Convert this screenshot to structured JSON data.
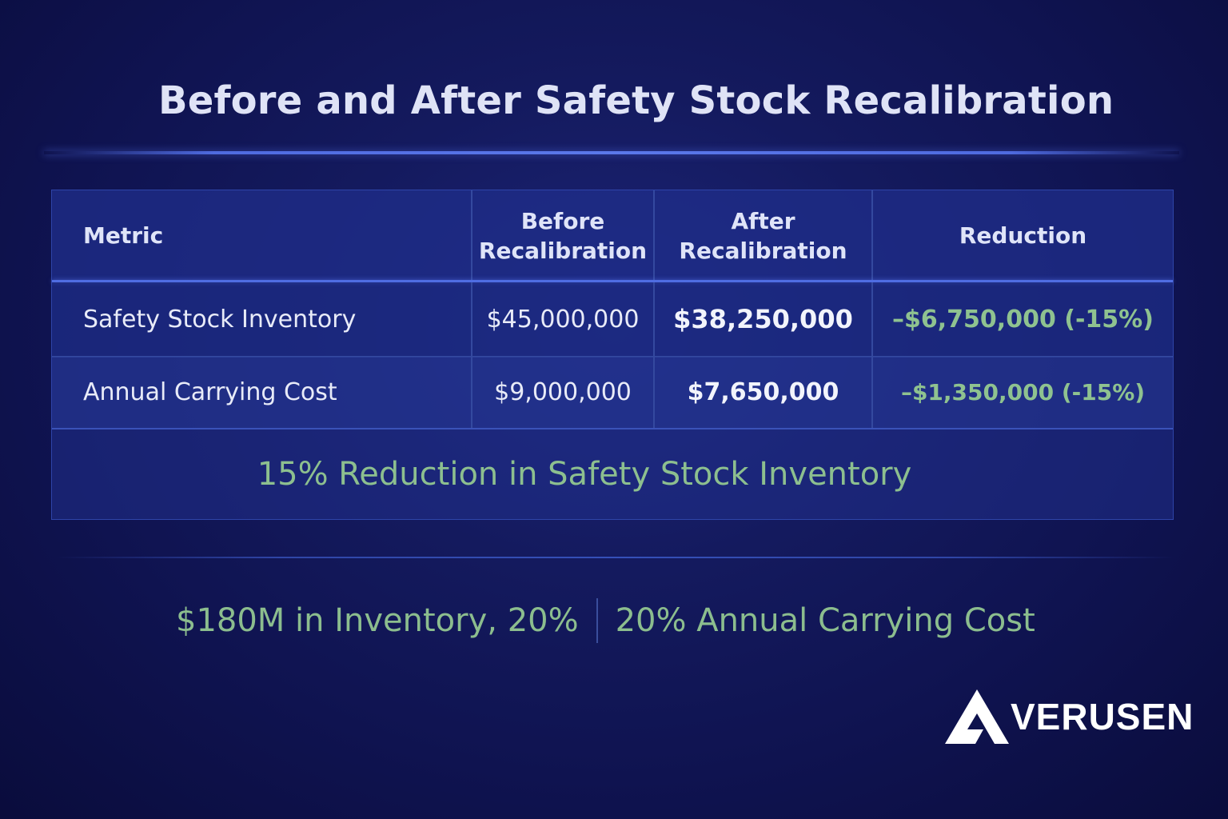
{
  "title": "Before and After Safety Stock Recalibration",
  "table": {
    "headers": {
      "metric": "Metric",
      "before": "Before Recalibration",
      "after": "After Recalibration",
      "reduction": "Reduction"
    },
    "rows": [
      {
        "metric": "Safety Stock Inventory",
        "before": "$45,000,000",
        "after": "$38,250,000",
        "reduction": "–$6,750,000 (-15%)"
      },
      {
        "metric": "Annual Carrying Cost",
        "before": "$9,000,000",
        "after": "$7,650,000",
        "reduction": "–$1,350,000 (-15%)"
      }
    ],
    "summary": "15% Reduction in Safety Stock Inventory"
  },
  "stats": {
    "left": "$180M in Inventory, 20%",
    "right": "20% Annual Carrying Cost"
  },
  "logo": {
    "text": "VERUSEN",
    "icon": "verusen-logo-icon"
  },
  "colors": {
    "background": "#141a5e",
    "accent_green": "#8fc290",
    "divider_blue": "#4f6de2"
  }
}
